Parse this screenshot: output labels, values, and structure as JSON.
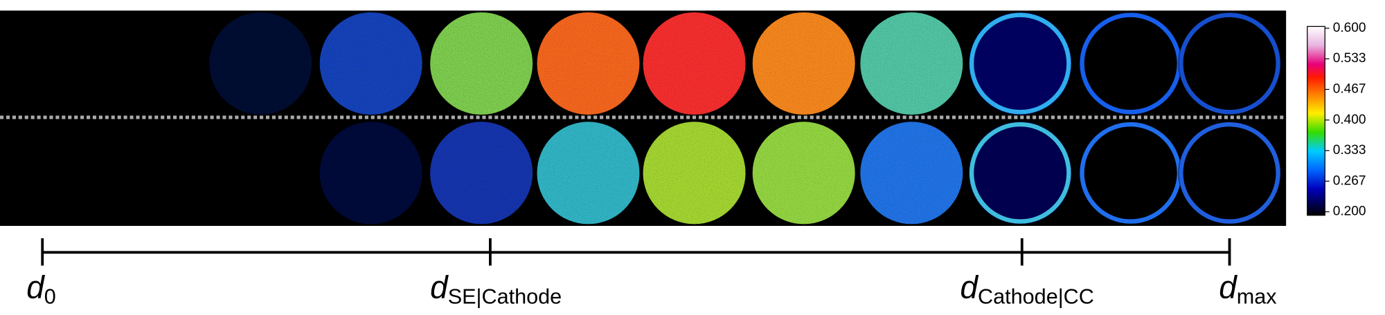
{
  "colorbar": {
    "ticks": [
      "0.600",
      "0.533",
      "0.467",
      "0.400",
      "0.333",
      "0.267",
      "0.200"
    ]
  },
  "axis": {
    "marks": [
      {
        "symbol": "d",
        "subscript": "0"
      },
      {
        "symbol": "d",
        "subscript": "SE|Cathode"
      },
      {
        "symbol": "d",
        "subscript": "Cathode|CC"
      },
      {
        "symbol": "d",
        "subscript": "max"
      }
    ]
  }
}
